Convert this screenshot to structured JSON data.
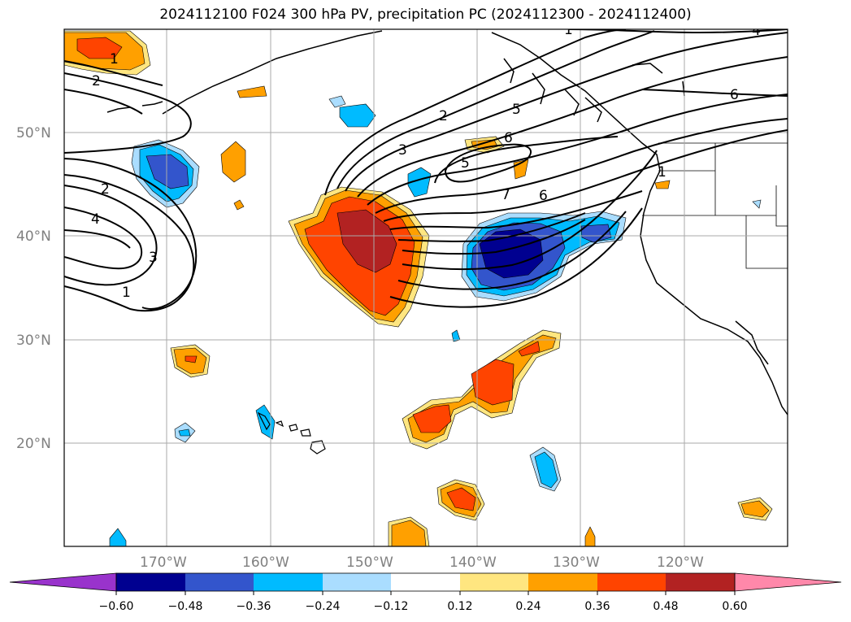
{
  "title": "2024112100 F024 300 hPa PV, precipitation PC (2024112300 - 2024112400)",
  "lat_labels": [
    "50°N",
    "40°N",
    "30°N",
    "20°N"
  ],
  "lon_labels": [
    "170°W",
    "160°W",
    "150°W",
    "140°W",
    "130°W",
    "120°W"
  ],
  "contour_labels": [
    "1",
    "2",
    "2",
    "4",
    "3",
    "1",
    "2",
    "3",
    "5",
    "6",
    "5",
    "7",
    "6",
    "1",
    "6",
    "1",
    "4"
  ],
  "colorbar": {
    "ticks": [
      "−0.60",
      "−0.48",
      "−0.36",
      "−0.24",
      "−0.12",
      "0.12",
      "0.24",
      "0.36",
      "0.48",
      "0.60"
    ],
    "colors": [
      "#9933cc",
      "#000090",
      "#3355cc",
      "#00bbff",
      "#aaddff",
      "#ffffff",
      "#ffe680",
      "#ffa000",
      "#ff4400",
      "#b22222",
      "#ff88aa"
    ]
  }
}
